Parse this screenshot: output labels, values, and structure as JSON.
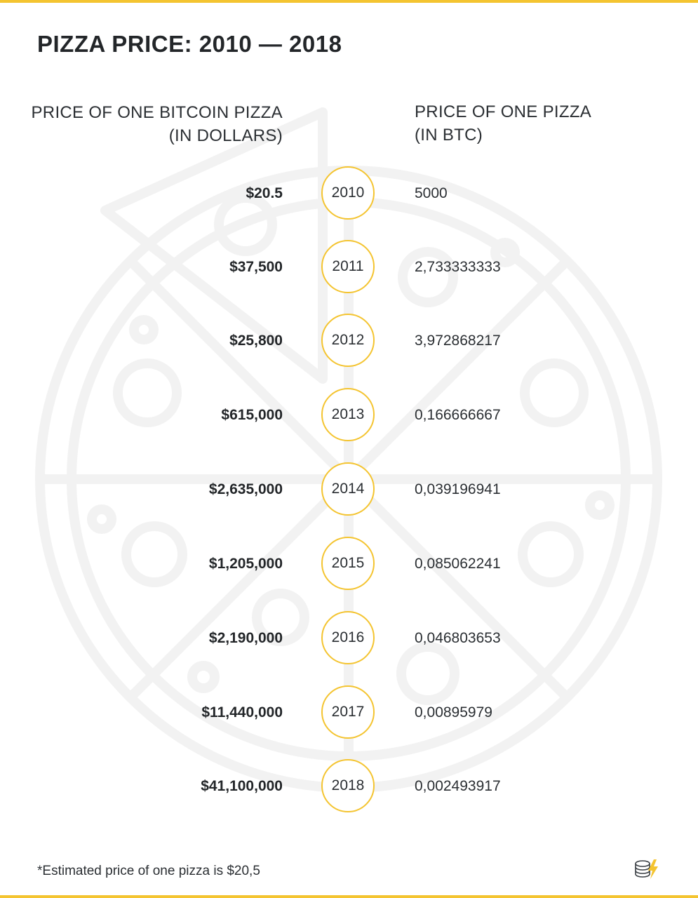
{
  "colors": {
    "accent": "#f4c430",
    "text": "#2b2f33",
    "watermark": "#f2f2f2"
  },
  "icons": {
    "background": "pizza-slice-watermark",
    "logo": "coin-stack-lightning-logo"
  },
  "title": "PIZZA PRICE: 2010 — 2018",
  "header_left": {
    "line1": "PRICE OF ONE BITCOIN PIZZA",
    "line2": "(IN DOLLARS)"
  },
  "header_right": {
    "line1": "PRICE OF ONE PIZZA",
    "line2": "(IN BTC)"
  },
  "rows": [
    {
      "usd": "$20.5",
      "year": "2010",
      "btc": "5000"
    },
    {
      "usd": "$37,500",
      "year": "2011",
      "btc": "2,733333333"
    },
    {
      "usd": "$25,800",
      "year": "2012",
      "btc": "3,972868217"
    },
    {
      "usd": "$615,000",
      "year": "2013",
      "btc": "0,166666667"
    },
    {
      "usd": "$2,635,000",
      "year": "2014",
      "btc": "0,039196941"
    },
    {
      "usd": "$1,205,000",
      "year": "2015",
      "btc": "0,085062241"
    },
    {
      "usd": "$2,190,000",
      "year": "2016",
      "btc": "0,046803653"
    },
    {
      "usd": "$11,440,000",
      "year": "2017",
      "btc": "0,00895979"
    },
    {
      "usd": "$41,100,000",
      "year": "2018",
      "btc": "0,002493917"
    }
  ],
  "footnote": "*Estimated price of one pizza is $20,5",
  "chart_data": {
    "type": "table",
    "title": "PIZZA PRICE: 2010 — 2018",
    "columns": [
      "PRICE OF ONE BITCOIN PIZZA (IN DOLLARS)",
      "Year",
      "PRICE OF ONE PIZZA (IN BTC)"
    ],
    "categories": [
      "2010",
      "2011",
      "2012",
      "2013",
      "2014",
      "2015",
      "2016",
      "2017",
      "2018"
    ],
    "series": [
      {
        "name": "PRICE OF ONE BITCOIN PIZZA (IN DOLLARS)",
        "values": [
          20.5,
          37500,
          25800,
          615000,
          2635000,
          1205000,
          2190000,
          11440000,
          41100000
        ]
      },
      {
        "name": "PRICE OF ONE PIZZA (IN BTC)",
        "values": [
          5000,
          2.733333333,
          3.972868217,
          0.166666667,
          0.039196941,
          0.085062241,
          0.046803653,
          0.00895979,
          0.002493917
        ]
      }
    ]
  }
}
